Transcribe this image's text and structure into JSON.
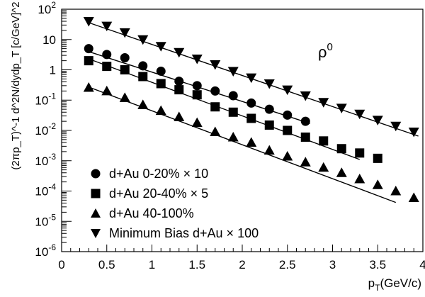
{
  "chart_data": {
    "type": "scatter",
    "title": "",
    "annotation": {
      "text": "ρ",
      "sup": "0"
    },
    "xlabel": {
      "main": "p",
      "sub": "T",
      "unit": "(GeV/c)"
    },
    "ylabel": "(2πp_T)^-1 d^2N/dydp_T [c/GeV]^2",
    "xlim": [
      0,
      4
    ],
    "ylim": [
      1e-06,
      100
    ],
    "yscale": "log",
    "grid": false,
    "legend_position": "bottom-left",
    "xticks": [
      "0",
      "0.5",
      "1",
      "1.5",
      "2",
      "2.5",
      "3",
      "3.5",
      "4"
    ],
    "yticks": [
      {
        "base": "10",
        "exp": "-6"
      },
      {
        "base": "10",
        "exp": "-5"
      },
      {
        "base": "10",
        "exp": "-4"
      },
      {
        "base": "10",
        "exp": "-3"
      },
      {
        "base": "10",
        "exp": "-2"
      },
      {
        "base": "10",
        "exp": "-1"
      },
      {
        "base": "1",
        "exp": ""
      },
      {
        "base": "10",
        "exp": ""
      },
      {
        "base": "10",
        "exp": "2"
      }
    ],
    "series": [
      {
        "name": "d+Au 0-20% × 10",
        "marker": "circle",
        "points": [
          [
            0.3,
            5.0
          ],
          [
            0.5,
            3.2
          ],
          [
            0.7,
            2.5
          ],
          [
            0.9,
            1.35
          ],
          [
            1.1,
            0.9
          ],
          [
            1.3,
            0.42
          ],
          [
            1.5,
            0.3
          ],
          [
            1.7,
            0.2
          ],
          [
            1.9,
            0.14
          ],
          [
            2.1,
            0.08
          ],
          [
            2.3,
            0.05
          ],
          [
            2.5,
            0.032
          ],
          [
            2.7,
            0.02
          ]
        ],
        "fit": [
          [
            0.3,
            4.0
          ],
          [
            2.75,
            0.017
          ]
        ]
      },
      {
        "name": "d+Au 20-40% × 5",
        "marker": "square",
        "points": [
          [
            0.3,
            2.0
          ],
          [
            0.5,
            1.3
          ],
          [
            0.7,
            1.0
          ],
          [
            0.9,
            0.6
          ],
          [
            1.1,
            0.35
          ],
          [
            1.3,
            0.22
          ],
          [
            1.5,
            0.15
          ],
          [
            1.7,
            0.06
          ],
          [
            1.9,
            0.04
          ],
          [
            2.1,
            0.025
          ],
          [
            2.3,
            0.015
          ],
          [
            2.5,
            0.01
          ],
          [
            2.7,
            0.006
          ],
          [
            2.9,
            0.0045
          ],
          [
            3.1,
            0.0025
          ],
          [
            3.3,
            0.0018
          ],
          [
            3.5,
            0.0012
          ]
        ],
        "fit": [
          [
            0.3,
            2.3
          ],
          [
            3.3,
            0.0011
          ]
        ]
      },
      {
        "name": "d+Au 40-100%",
        "marker": "triangle-up",
        "points": [
          [
            0.3,
            0.26
          ],
          [
            0.5,
            0.2
          ],
          [
            0.7,
            0.12
          ],
          [
            0.9,
            0.07
          ],
          [
            1.1,
            0.045
          ],
          [
            1.3,
            0.028
          ],
          [
            1.5,
            0.018
          ],
          [
            1.7,
            0.009
          ],
          [
            1.9,
            0.006
          ],
          [
            2.1,
            0.004
          ],
          [
            2.3,
            0.0022
          ],
          [
            2.5,
            0.0014
          ],
          [
            2.7,
            0.0009
          ],
          [
            2.9,
            0.0006
          ],
          [
            3.1,
            0.0004
          ],
          [
            3.3,
            0.00025
          ],
          [
            3.5,
            0.00016
          ],
          [
            3.7,
            0.0001
          ],
          [
            3.9,
            6e-05
          ],
          [
            4.1,
            4.5e-05
          ]
        ],
        "fit": [
          [
            0.3,
            0.27
          ],
          [
            3.7,
            4.2e-05
          ]
        ]
      },
      {
        "name": "Minimum Bias d+Au × 100",
        "marker": "triangle-down",
        "points": [
          [
            0.3,
            40.0
          ],
          [
            0.5,
            28.0
          ],
          [
            0.7,
            17.0
          ],
          [
            0.9,
            10.0
          ],
          [
            1.1,
            6.0
          ],
          [
            1.3,
            3.8
          ],
          [
            1.5,
            2.3
          ],
          [
            1.7,
            1.5
          ],
          [
            1.9,
            0.9
          ],
          [
            2.1,
            0.55
          ],
          [
            2.3,
            0.35
          ],
          [
            2.5,
            0.22
          ],
          [
            2.7,
            0.14
          ],
          [
            2.9,
            0.085
          ],
          [
            3.1,
            0.055
          ],
          [
            3.3,
            0.035
          ],
          [
            3.5,
            0.022
          ],
          [
            3.7,
            0.014
          ],
          [
            3.9,
            0.009
          ],
          [
            4.1,
            0.0055
          ]
        ],
        "fit": [
          [
            0.3,
            36.0
          ],
          [
            3.95,
            0.0065
          ]
        ]
      }
    ]
  }
}
